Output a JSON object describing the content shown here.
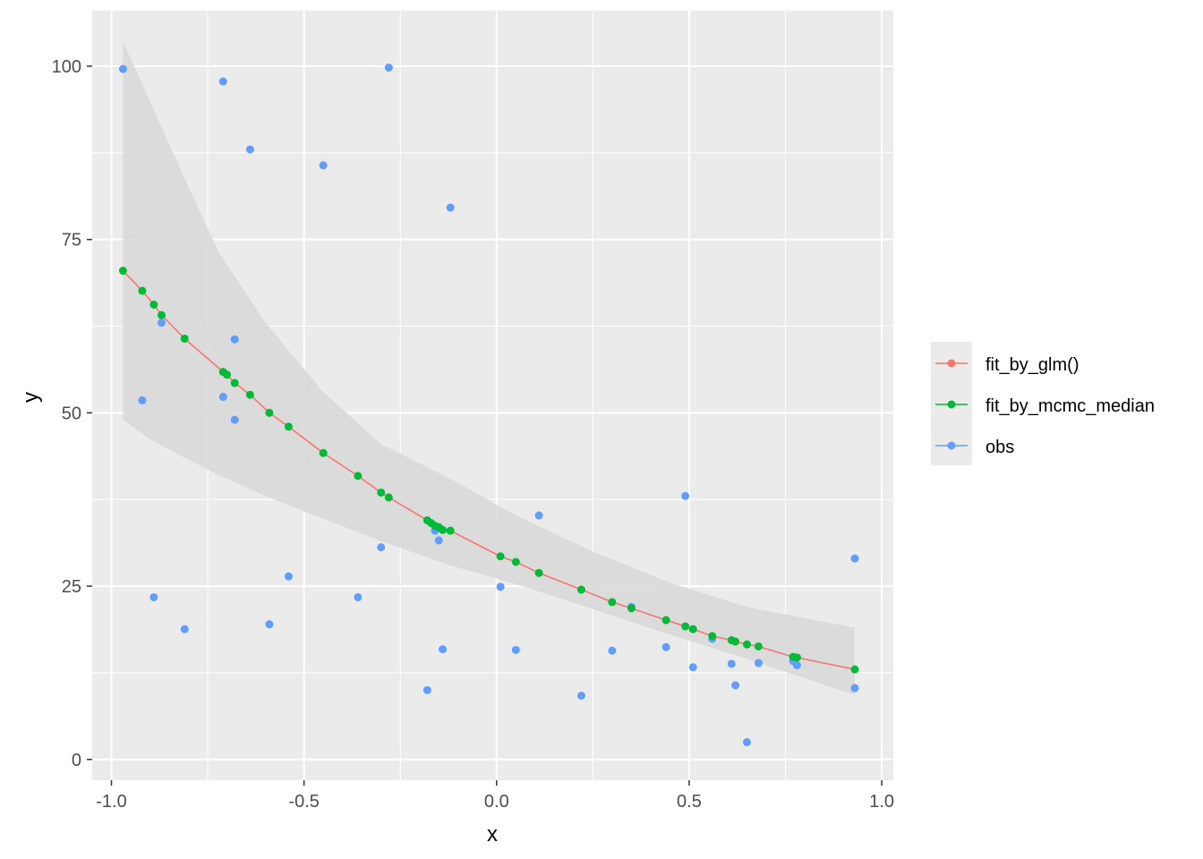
{
  "chart_data": {
    "type": "scatter",
    "xlabel": "x",
    "ylabel": "y",
    "xlim": [
      -1.05,
      1.03
    ],
    "ylim": [
      -3,
      108
    ],
    "x_ticks": [
      -1.0,
      -0.5,
      0.0,
      0.5,
      1.0
    ],
    "x_tick_labels": [
      "-1.0",
      "-0.5",
      "0.0",
      "0.5",
      "1.0"
    ],
    "y_ticks": [
      0,
      25,
      50,
      75,
      100
    ],
    "y_tick_labels": [
      "0",
      "25",
      "50",
      "75",
      "100"
    ],
    "grid": true,
    "legend_position": "right",
    "colors": {
      "panel": "#ebebeb",
      "grid": "#ffffff",
      "ribbon": "#d9d9d9",
      "fit_by_glm": "#f8766d",
      "fit_by_mcmc_median": "#00ba38",
      "obs": "#619cff"
    },
    "ribbon": {
      "x": [
        -0.97,
        -0.9,
        -0.82,
        -0.72,
        -0.6,
        -0.45,
        -0.3,
        -0.12,
        0.05,
        0.25,
        0.45,
        0.65,
        0.93
      ],
      "lower": [
        49,
        46.2,
        43.8,
        41,
        38,
        34.7,
        31.5,
        28,
        25.3,
        21.7,
        18,
        14.5,
        9.3
      ],
      "upper": [
        103.5,
        95,
        85,
        73,
        63,
        53,
        45.5,
        40.5,
        35.2,
        30,
        25.5,
        22,
        19
      ]
    },
    "series": [
      {
        "name": "fit_by_glm()",
        "kind": "line",
        "x": [
          -0.97,
          -0.92,
          -0.89,
          -0.87,
          -0.81,
          -0.71,
          -0.7,
          -0.68,
          -0.64,
          -0.59,
          -0.54,
          -0.45,
          -0.36,
          -0.3,
          -0.28,
          -0.18,
          -0.17,
          -0.16,
          -0.15,
          -0.14,
          -0.12,
          0.01,
          0.05,
          0.11,
          0.22,
          0.3,
          0.35,
          0.44,
          0.49,
          0.51,
          0.56,
          0.61,
          0.62,
          0.65,
          0.68,
          0.77,
          0.78,
          0.93
        ],
        "y": [
          70.5,
          67.6,
          65.6,
          64.1,
          60.7,
          55.9,
          55.5,
          54.3,
          52.6,
          50.0,
          48.0,
          44.2,
          40.9,
          38.5,
          37.8,
          34.5,
          34.1,
          33.7,
          33.5,
          33.1,
          33.0,
          29.3,
          28.5,
          26.9,
          24.5,
          22.7,
          21.8,
          20.1,
          19.2,
          18.8,
          17.8,
          17.2,
          17.0,
          16.6,
          16.3,
          14.8,
          14.7,
          13.0
        ]
      },
      {
        "name": "fit_by_mcmc_median",
        "kind": "points",
        "x": [
          -0.97,
          -0.92,
          -0.89,
          -0.87,
          -0.81,
          -0.71,
          -0.7,
          -0.68,
          -0.64,
          -0.59,
          -0.54,
          -0.45,
          -0.36,
          -0.3,
          -0.28,
          -0.18,
          -0.17,
          -0.16,
          -0.15,
          -0.14,
          -0.12,
          0.01,
          0.05,
          0.11,
          0.22,
          0.3,
          0.35,
          0.44,
          0.49,
          0.51,
          0.56,
          0.61,
          0.62,
          0.65,
          0.68,
          0.77,
          0.78,
          0.93
        ],
        "y": [
          70.5,
          67.6,
          65.6,
          64.1,
          60.7,
          55.9,
          55.5,
          54.3,
          52.6,
          50.0,
          48.0,
          44.2,
          40.9,
          38.5,
          37.8,
          34.5,
          34.1,
          33.7,
          33.5,
          33.1,
          33.0,
          29.3,
          28.5,
          26.9,
          24.5,
          22.7,
          21.8,
          20.1,
          19.2,
          18.8,
          17.8,
          17.2,
          17.0,
          16.6,
          16.3,
          14.8,
          14.7,
          13.0
        ]
      },
      {
        "name": "obs",
        "kind": "points",
        "x": [
          -0.97,
          -0.92,
          -0.89,
          -0.87,
          -0.81,
          -0.71,
          -0.71,
          -0.68,
          -0.68,
          -0.64,
          -0.59,
          -0.54,
          -0.45,
          -0.36,
          -0.3,
          -0.28,
          -0.18,
          -0.16,
          -0.15,
          -0.14,
          -0.12,
          0.01,
          0.05,
          0.11,
          0.22,
          0.3,
          0.35,
          0.44,
          0.49,
          0.51,
          0.56,
          0.61,
          0.62,
          0.65,
          0.68,
          0.77,
          0.78,
          0.93,
          0.93
        ],
        "y": [
          99.6,
          51.8,
          23.4,
          63.0,
          18.8,
          97.8,
          52.3,
          60.6,
          49.0,
          88.0,
          19.5,
          26.4,
          85.7,
          23.4,
          30.6,
          99.8,
          10.0,
          33.0,
          31.6,
          15.9,
          79.6,
          24.9,
          15.8,
          35.2,
          9.2,
          15.7,
          22.0,
          16.2,
          38.0,
          13.3,
          17.4,
          13.8,
          10.7,
          2.5,
          13.9,
          14.2,
          13.6,
          29.0,
          10.3
        ]
      }
    ]
  }
}
